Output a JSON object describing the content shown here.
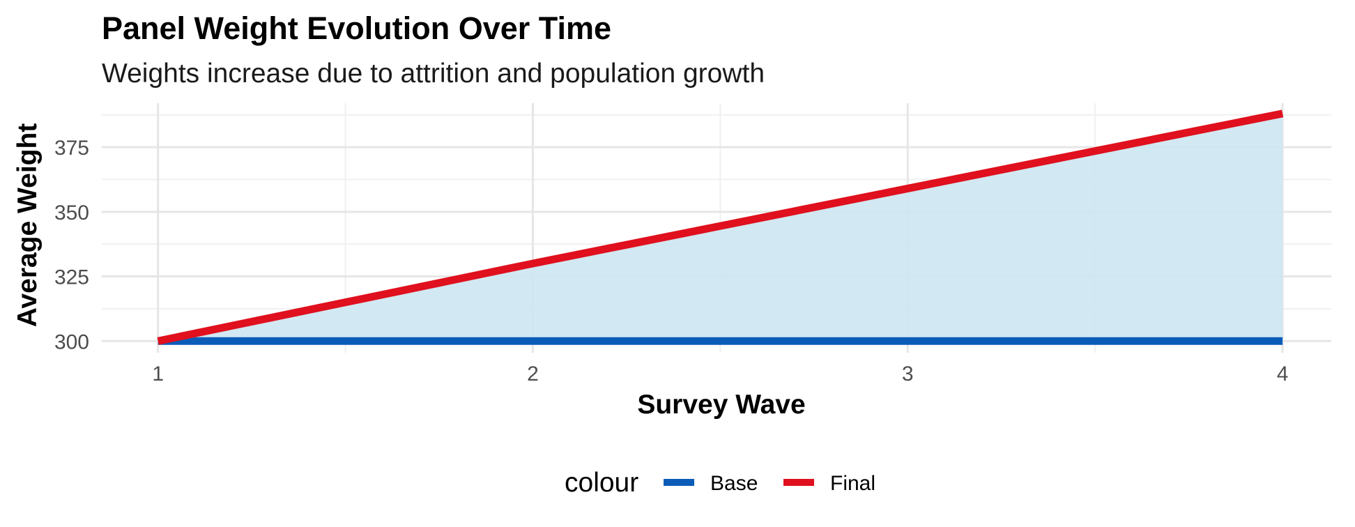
{
  "chart_data": {
    "type": "area",
    "title": "Panel Weight Evolution Over Time",
    "subtitle": "Weights increase due to attrition and population growth",
    "xlabel": "Survey Wave",
    "ylabel": "Average Weight",
    "x": [
      1,
      2,
      3,
      4
    ],
    "x_ticks": [
      "1",
      "2",
      "3",
      "4"
    ],
    "y_ticks": [
      "300",
      "325",
      "350",
      "375"
    ],
    "xlim": [
      0.85,
      4.13
    ],
    "ylim": [
      295.5,
      392
    ],
    "grid": true,
    "series": [
      {
        "name": "Base",
        "values": [
          300,
          300,
          300,
          300
        ],
        "color": "#0b5cb8"
      },
      {
        "name": "Final",
        "values": [
          300,
          330,
          359,
          388
        ],
        "color": "#e0101e"
      }
    ],
    "fill": {
      "between": [
        "Base",
        "Final"
      ],
      "color": "#cde5f1"
    },
    "legend": {
      "title": "colour",
      "position": "bottom"
    }
  }
}
